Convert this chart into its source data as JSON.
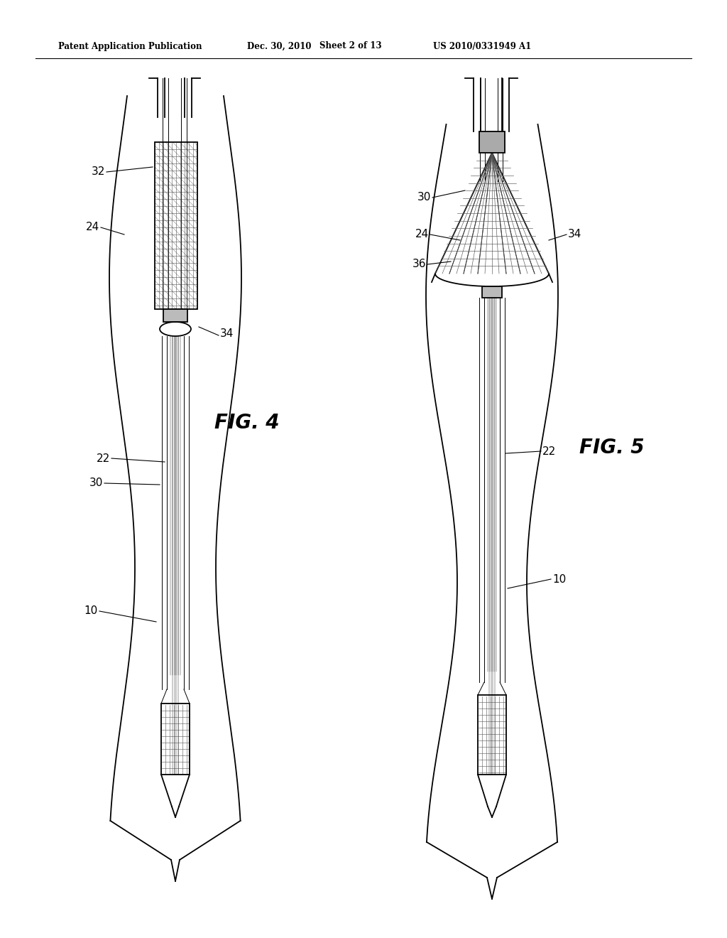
{
  "bg_color": "#ffffff",
  "header_text": "Patent Application Publication",
  "header_date": "Dec. 30, 2010",
  "header_sheet": "Sheet 2 of 13",
  "header_patent": "US 2010/0331949 A1",
  "fig4_label": "FIG. 4",
  "fig5_label": "FIG. 5",
  "lc": "#000000"
}
